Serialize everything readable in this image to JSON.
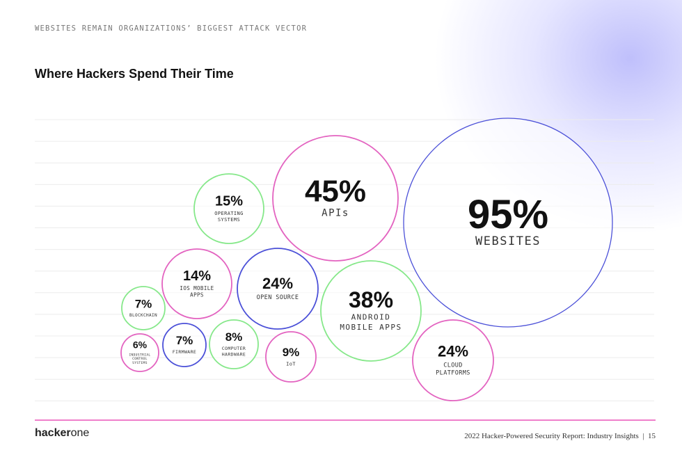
{
  "header": {
    "kicker": "WEBSITES REMAIN ORGANIZATIONS’ BIGGEST ATTACK VECTOR",
    "title": "Where Hackers Spend Their Time"
  },
  "colors": {
    "blue": "#4b50d8",
    "pink": "#e363c0",
    "green": "#86e88a",
    "grid": "#ececec",
    "rule": "#ef7fcb"
  },
  "chart_data": {
    "type": "bubble",
    "unit": "%",
    "bubbles": [
      {
        "label": "WEBSITES",
        "value": 95,
        "display": "95%",
        "color": "blue"
      },
      {
        "label": "APIs",
        "value": 45,
        "display": "45%",
        "color": "pink"
      },
      {
        "label": "ANDROID MOBILE APPS",
        "value": 38,
        "display": "38%",
        "color": "green"
      },
      {
        "label": "CLOUD PLATFORMS",
        "value": 24,
        "display": "24%",
        "color": "pink"
      },
      {
        "label": "OPEN SOURCE",
        "value": 24,
        "display": "24%",
        "color": "blue"
      },
      {
        "label": "OPERATING SYSTEMS",
        "value": 15,
        "display": "15%",
        "color": "green"
      },
      {
        "label": "IOS MOBILE APPS",
        "value": 14,
        "display": "14%",
        "color": "pink"
      },
      {
        "label": "IoT",
        "value": 9,
        "display": "9%",
        "color": "pink"
      },
      {
        "label": "COMPUTER HARDWARE",
        "value": 8,
        "display": "8%",
        "color": "green"
      },
      {
        "label": "FIRMWARE",
        "value": 7,
        "display": "7%",
        "color": "blue"
      },
      {
        "label": "BLOCKCHAIN",
        "value": 7,
        "display": "7%",
        "color": "green"
      },
      {
        "label": "INDUSTRIAL CONTROL SYSTEMS",
        "value": 6,
        "display": "6%",
        "color": "pink"
      }
    ]
  },
  "footer": {
    "logo_bold": "hacker",
    "logo_light": "one",
    "citation": "2022 Hacker-Powered Security Report: Industry Insights",
    "page_separator": "|",
    "page": "15"
  }
}
